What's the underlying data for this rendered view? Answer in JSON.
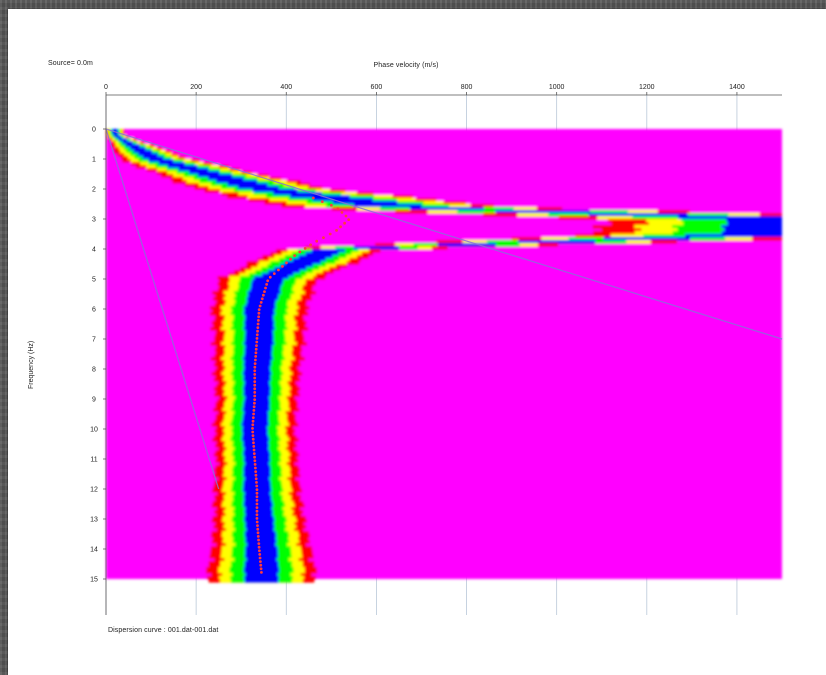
{
  "window": {
    "source_text": "Source= 0.0m",
    "footer_text": "Dispersion curve : 001.dat-001.dat"
  },
  "chart_data": {
    "type": "heatmap",
    "xlabel": "Phase velocity (m/s)",
    "ylabel": "Frequency (Hz)",
    "x_ticks": [
      0,
      200,
      400,
      600,
      800,
      1000,
      1200,
      1400
    ],
    "y_ticks": [
      0,
      1,
      2,
      3,
      4,
      5,
      6,
      7,
      8,
      9,
      10,
      11,
      12,
      13,
      14,
      15
    ],
    "xlim": [
      0,
      1500
    ],
    "ylim": [
      0,
      15
    ],
    "y_inverted": true,
    "x_axis_position": "top",
    "colormap": [
      "#ff00ff",
      "#ff0000",
      "#ffff00",
      "#00ff00",
      "#0000ff"
    ],
    "colormap_note": "magenta = low energy, blue = high energy",
    "energy_ridge": {
      "f": [
        0.2,
        1,
        2,
        2.6,
        3,
        3.5,
        4,
        5,
        6,
        7,
        8,
        9,
        10,
        11,
        12,
        13,
        14,
        14.8
      ],
      "v_center": [
        20,
        110,
        350,
        650,
        1500,
        1500,
        500,
        360,
        340,
        340,
        335,
        335,
        330,
        335,
        335,
        340,
        345,
        345
      ],
      "v_half_width": [
        20,
        80,
        150,
        250,
        400,
        400,
        120,
        110,
        105,
        100,
        95,
        90,
        90,
        90,
        95,
        100,
        110,
        120
      ]
    },
    "dispersion_curve": {
      "color": "#ff3b3b",
      "f": [
        2.3,
        2.6,
        3.0,
        3.4,
        3.8,
        4.2,
        5,
        6,
        7,
        8,
        9,
        10,
        11,
        12,
        13,
        14,
        14.8
      ],
      "v": [
        460,
        510,
        540,
        510,
        460,
        420,
        360,
        340,
        335,
        330,
        330,
        325,
        330,
        335,
        335,
        340,
        345
      ]
    },
    "reference_lines": {
      "color": "#8a6fd8",
      "lines": [
        {
          "f_start": 0,
          "v_start": 0,
          "f_end": 7,
          "v_end": 1500
        },
        {
          "f_start": 0,
          "v_start": 0,
          "f_end": 12,
          "v_end": 250
        }
      ]
    }
  }
}
